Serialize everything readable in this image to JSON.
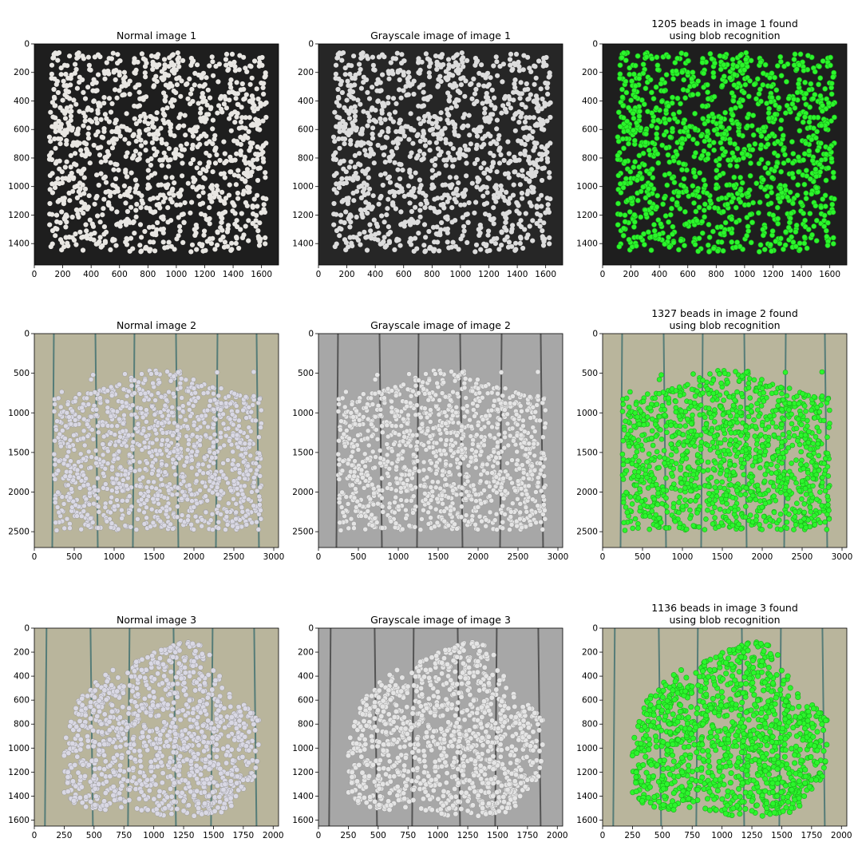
{
  "figure": {
    "panels": [
      {
        "row": 1,
        "col": 1,
        "title_lines": [
          "Normal image 1"
        ],
        "style": "dark",
        "x_ticks": [
          "0",
          "200",
          "400",
          "600",
          "800",
          "1000",
          "1200",
          "1400",
          "1600"
        ],
        "y_ticks": [
          "0",
          "200",
          "400",
          "600",
          "800",
          "1000",
          "1200",
          "1400"
        ]
      },
      {
        "row": 1,
        "col": 2,
        "title_lines": [
          "Grayscale image of image 1"
        ],
        "style": "dark-gray",
        "x_ticks": [
          "0",
          "200",
          "400",
          "600",
          "800",
          "1000",
          "1200",
          "1400",
          "1600"
        ],
        "y_ticks": [
          "0",
          "200",
          "400",
          "600",
          "800",
          "1000",
          "1200",
          "1400"
        ]
      },
      {
        "row": 1,
        "col": 3,
        "title_lines": [
          "1205 beads in image 1 found",
          "using blob recognition"
        ],
        "style": "dark-green",
        "x_ticks": [
          "0",
          "200",
          "400",
          "600",
          "800",
          "1000",
          "1200",
          "1400",
          "1600"
        ],
        "y_ticks": [
          "0",
          "200",
          "400",
          "600",
          "800",
          "1000",
          "1200",
          "1400"
        ]
      },
      {
        "row": 2,
        "col": 1,
        "title_lines": [
          "Normal image 2"
        ],
        "style": "paper",
        "x_ticks": [
          "0",
          "500",
          "1000",
          "1500",
          "2000",
          "2500",
          "3000"
        ],
        "y_ticks": [
          "0",
          "500",
          "1000",
          "1500",
          "2000",
          "2500"
        ]
      },
      {
        "row": 2,
        "col": 2,
        "title_lines": [
          "Grayscale image of image 2"
        ],
        "style": "paper-gray",
        "x_ticks": [
          "0",
          "500",
          "1000",
          "1500",
          "2000",
          "2500",
          "3000"
        ],
        "y_ticks": [
          "0",
          "500",
          "1000",
          "1500",
          "2000",
          "2500"
        ]
      },
      {
        "row": 2,
        "col": 3,
        "title_lines": [
          "1327 beads in image 2 found",
          "using blob recognition"
        ],
        "style": "paper-green",
        "x_ticks": [
          "0",
          "500",
          "1000",
          "1500",
          "2000",
          "2500",
          "3000"
        ],
        "y_ticks": [
          "0",
          "500",
          "1000",
          "1500",
          "2000",
          "2500"
        ]
      },
      {
        "row": 3,
        "col": 1,
        "title_lines": [
          "Normal image 3"
        ],
        "style": "paper",
        "x_ticks": [
          "0",
          "250",
          "500",
          "750",
          "1000",
          "1250",
          "1500",
          "1750",
          "2000"
        ],
        "y_ticks": [
          "0",
          "200",
          "400",
          "600",
          "800",
          "1000",
          "1200",
          "1400",
          "1600"
        ]
      },
      {
        "row": 3,
        "col": 2,
        "title_lines": [
          "Grayscale image of image 3"
        ],
        "style": "paper-gray",
        "x_ticks": [
          "0",
          "250",
          "500",
          "750",
          "1000",
          "1250",
          "1500",
          "1750",
          "2000"
        ],
        "y_ticks": [
          "0",
          "200",
          "400",
          "600",
          "800",
          "1000",
          "1200",
          "1400",
          "1600"
        ]
      },
      {
        "row": 3,
        "col": 3,
        "title_lines": [
          "1136 beads in image 3 found",
          "using blob recognition"
        ],
        "style": "paper-green",
        "x_ticks": [
          "0",
          "250",
          "500",
          "750",
          "1000",
          "1250",
          "1500",
          "1750",
          "2000"
        ],
        "y_ticks": [
          "0",
          "200",
          "400",
          "600",
          "800",
          "1000",
          "1200",
          "1400",
          "1600"
        ]
      }
    ],
    "colors": {
      "dark_bg": "#1e1e1e",
      "dark_gray_bg": "#262626",
      "bead_white": "#e8e6e2",
      "bead_gray": "#dcdcdc",
      "blob_green": "#2cf52c",
      "paper_bg": "#b9b59c",
      "paper_gray_bg": "#a7a7a7",
      "paper_line": "#3d6f70",
      "paper_gray_line": "#404040",
      "bead_paper": "#d9d8e4"
    }
  }
}
